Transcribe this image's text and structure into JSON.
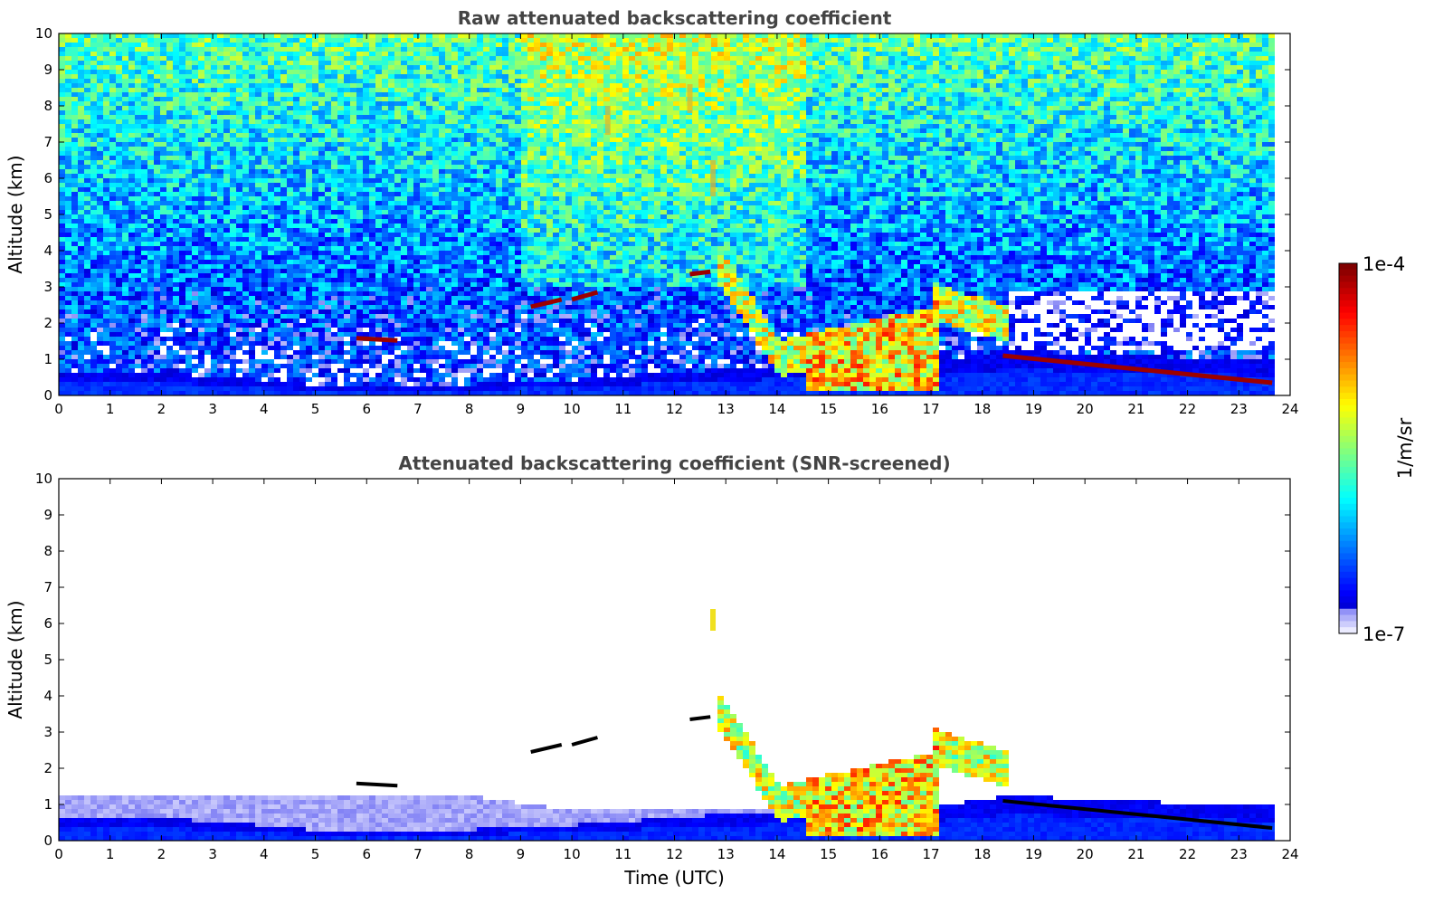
{
  "chart_data": [
    {
      "type": "heatmap",
      "title": "Raw attenuated backscattering coefficient",
      "xlabel": "",
      "ylabel": "Altitude (km)",
      "xlim": [
        0,
        24
      ],
      "ylim": [
        0,
        10
      ],
      "x_ticks": [
        "0",
        "1",
        "2",
        "3",
        "4",
        "5",
        "6",
        "7",
        "8",
        "9",
        "10",
        "11",
        "12",
        "13",
        "14",
        "15",
        "16",
        "17",
        "18",
        "19",
        "20",
        "21",
        "22",
        "23",
        "24"
      ],
      "y_ticks": [
        "0",
        "1",
        "2",
        "3",
        "4",
        "5",
        "6",
        "7",
        "8",
        "9",
        "10"
      ],
      "colormap": "jet",
      "data_end_time": 23.65,
      "features": {
        "boundary_layer_top": [
          {
            "t": 0,
            "h": 0.75
          },
          {
            "t": 3,
            "h": 0.6
          },
          {
            "t": 5,
            "h": 0.35
          },
          {
            "t": 7,
            "h": 0.3
          },
          {
            "t": 10,
            "h": 0.5
          },
          {
            "t": 13,
            "h": 0.8
          },
          {
            "t": 17,
            "h": 1.0
          },
          {
            "t": 18.4,
            "h": 1.3
          },
          {
            "t": 23.65,
            "h": 1.0
          }
        ],
        "cloud_layers": [
          {
            "t0": 5.8,
            "t1": 6.6,
            "h0": 1.58,
            "h1": 1.52
          },
          {
            "t0": 9.2,
            "t1": 9.8,
            "h0": 2.45,
            "h1": 2.65
          },
          {
            "t0": 10.0,
            "t1": 10.5,
            "h0": 2.65,
            "h1": 2.85
          },
          {
            "t0": 12.3,
            "t1": 12.7,
            "h0": 3.35,
            "h1": 3.42
          },
          {
            "t0": 18.4,
            "t1": 23.65,
            "h0": 1.1,
            "h1": 0.35
          }
        ],
        "cirrus": [
          {
            "t": 10.7,
            "h0": 7.2,
            "h1": 8.0
          },
          {
            "t": 12.3,
            "h0": 7.8,
            "h1": 8.6
          },
          {
            "t": 12.75,
            "h0": 5.5,
            "h1": 6.5
          }
        ]
      }
    },
    {
      "type": "heatmap",
      "title": "Attenuated backscattering coefficient (SNR-screened)",
      "xlabel": "Time (UTC)",
      "ylabel": "Altitude (km)",
      "xlim": [
        0,
        24
      ],
      "ylim": [
        0,
        10
      ],
      "x_ticks": [
        "0",
        "1",
        "2",
        "3",
        "4",
        "5",
        "6",
        "7",
        "8",
        "9",
        "10",
        "11",
        "12",
        "13",
        "14",
        "15",
        "16",
        "17",
        "18",
        "19",
        "20",
        "21",
        "22",
        "23",
        "24"
      ],
      "y_ticks": [
        "0",
        "1",
        "2",
        "3",
        "4",
        "5",
        "6",
        "7",
        "8",
        "9",
        "10"
      ],
      "colormap": "jet",
      "data_end_time": 23.65
    }
  ],
  "colorbar": {
    "label": "1/m/sr",
    "max_label": "1e-4",
    "min_label": "1e-7",
    "scale": "log"
  }
}
